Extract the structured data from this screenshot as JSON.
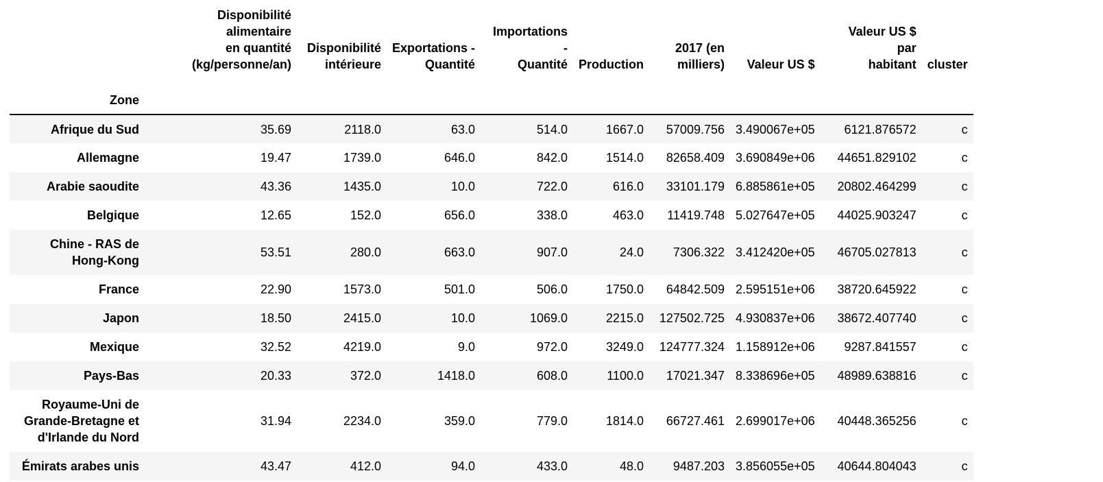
{
  "table": {
    "index_name": "Zone",
    "columns": [
      "Disponibilité alimentaire en quantité (kg/personne/an)",
      "Disponibilité intérieure",
      "Exportations - Quantité",
      "Importations - Quantité",
      "Production",
      "2017 (en milliers)",
      "Valeur US $",
      "Valeur US $ par habitant",
      "cluster"
    ],
    "header_lines": [
      [
        "Disponibilité alimentaire",
        "en quantité",
        "(kg/personne/an)"
      ],
      [
        "Disponibilité",
        "intérieure"
      ],
      [
        "Exportations -",
        "Quantité"
      ],
      [
        "Importations -",
        "Quantité"
      ],
      [
        "Production"
      ],
      [
        "2017 (en",
        "milliers)"
      ],
      [
        "Valeur US $"
      ],
      [
        "Valeur US $ par",
        "habitant"
      ],
      [
        "cluster"
      ]
    ],
    "rows": [
      {
        "zone": [
          "Afrique du Sud"
        ],
        "values": [
          "35.69",
          "2118.0",
          "63.0",
          "514.0",
          "1667.0",
          "57009.756",
          "3.490067e+05",
          "6121.876572",
          "c"
        ]
      },
      {
        "zone": [
          "Allemagne"
        ],
        "values": [
          "19.47",
          "1739.0",
          "646.0",
          "842.0",
          "1514.0",
          "82658.409",
          "3.690849e+06",
          "44651.829102",
          "c"
        ]
      },
      {
        "zone": [
          "Arabie saoudite"
        ],
        "values": [
          "43.36",
          "1435.0",
          "10.0",
          "722.0",
          "616.0",
          "33101.179",
          "6.885861e+05",
          "20802.464299",
          "c"
        ]
      },
      {
        "zone": [
          "Belgique"
        ],
        "values": [
          "12.65",
          "152.0",
          "656.0",
          "338.0",
          "463.0",
          "11419.748",
          "5.027647e+05",
          "44025.903247",
          "c"
        ]
      },
      {
        "zone": [
          "Chine - RAS de",
          "Hong-Kong"
        ],
        "values": [
          "53.51",
          "280.0",
          "663.0",
          "907.0",
          "24.0",
          "7306.322",
          "3.412420e+05",
          "46705.027813",
          "c"
        ]
      },
      {
        "zone": [
          "France"
        ],
        "values": [
          "22.90",
          "1573.0",
          "501.0",
          "506.0",
          "1750.0",
          "64842.509",
          "2.595151e+06",
          "38720.645922",
          "c"
        ]
      },
      {
        "zone": [
          "Japon"
        ],
        "values": [
          "18.50",
          "2415.0",
          "10.0",
          "1069.0",
          "2215.0",
          "127502.725",
          "4.930837e+06",
          "38672.407740",
          "c"
        ]
      },
      {
        "zone": [
          "Mexique"
        ],
        "values": [
          "32.52",
          "4219.0",
          "9.0",
          "972.0",
          "3249.0",
          "124777.324",
          "1.158912e+06",
          "9287.841557",
          "c"
        ]
      },
      {
        "zone": [
          "Pays-Bas"
        ],
        "values": [
          "20.33",
          "372.0",
          "1418.0",
          "608.0",
          "1100.0",
          "17021.347",
          "8.338696e+05",
          "48989.638816",
          "c"
        ]
      },
      {
        "zone": [
          "Royaume-Uni de",
          "Grande-Bretagne et",
          "d'Irlande du Nord"
        ],
        "values": [
          "31.94",
          "2234.0",
          "359.0",
          "779.0",
          "1814.0",
          "66727.461",
          "2.699017e+06",
          "40448.365256",
          "c"
        ]
      },
      {
        "zone": [
          "Émirats arabes unis"
        ],
        "values": [
          "43.47",
          "412.0",
          "94.0",
          "433.0",
          "48.0",
          "9487.203",
          "3.856055e+05",
          "40644.804043",
          "c"
        ]
      }
    ]
  }
}
